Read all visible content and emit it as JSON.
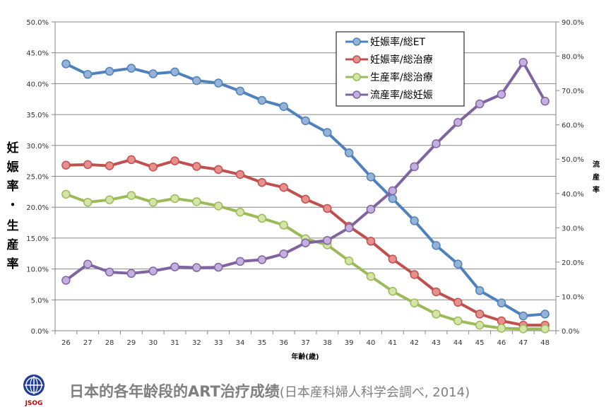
{
  "chart_data": {
    "type": "line",
    "x": [
      26,
      27,
      28,
      29,
      30,
      31,
      32,
      33,
      34,
      35,
      36,
      37,
      38,
      39,
      40,
      41,
      42,
      43,
      44,
      45,
      46,
      47,
      48
    ],
    "xlabel": "年齢(歳)",
    "ylabel_left_chars": [
      "妊",
      "娠",
      "率",
      "・",
      "生",
      "産",
      "率"
    ],
    "ylabel_right_chars": [
      "流",
      "産",
      "率"
    ],
    "ylim_left": [
      0,
      50
    ],
    "ylim_right": [
      0,
      90
    ],
    "yticks_left": [
      "0.0%",
      "5.0%",
      "10.0%",
      "15.0%",
      "20.0%",
      "25.0%",
      "30.0%",
      "35.0%",
      "40.0%",
      "45.0%",
      "50.0%"
    ],
    "yticks_right": [
      "0.0%",
      "10.0%",
      "20.0%",
      "30.0%",
      "40.0%",
      "50.0%",
      "60.0%",
      "70.0%",
      "80.0%",
      "90.0%"
    ],
    "series": [
      {
        "name": "妊娠率/総ET",
        "axis": "left",
        "color": "#4f81bd",
        "marker": "#95b3d7",
        "values": [
          43.2,
          41.5,
          42.0,
          42.5,
          41.6,
          41.9,
          40.5,
          40.1,
          38.8,
          37.3,
          36.3,
          34.0,
          32.1,
          28.8,
          24.9,
          21.4,
          17.8,
          13.8,
          10.8,
          6.5,
          4.5,
          2.4,
          2.7
        ]
      },
      {
        "name": "妊娠率/総治療",
        "axis": "left",
        "color": "#c0504d",
        "marker": "#e6908e",
        "values": [
          26.8,
          26.9,
          26.7,
          27.7,
          26.5,
          27.5,
          26.6,
          26.1,
          25.3,
          24.0,
          23.2,
          21.3,
          19.8,
          16.9,
          14.5,
          11.6,
          9.1,
          6.3,
          4.6,
          2.7,
          1.6,
          0.9,
          0.9
        ]
      },
      {
        "name": "生産率/総治療",
        "axis": "left",
        "color": "#9bbb59",
        "marker": "#d7e4a8",
        "values": [
          22.1,
          20.8,
          21.2,
          21.9,
          20.8,
          21.4,
          20.9,
          20.2,
          19.2,
          18.2,
          17.1,
          14.9,
          13.9,
          11.3,
          8.8,
          6.4,
          4.5,
          2.7,
          1.6,
          0.9,
          0.4,
          0.3,
          0.3
        ]
      },
      {
        "name": "流産率/総妊娠",
        "axis": "right",
        "color": "#8064a2",
        "marker": "#c3b0de",
        "values": [
          14.7,
          19.4,
          17.1,
          16.7,
          17.4,
          18.6,
          18.4,
          18.5,
          20.2,
          20.7,
          22.4,
          25.6,
          26.3,
          30.0,
          35.4,
          40.8,
          47.8,
          54.5,
          60.7,
          66.1,
          68.9,
          78.2,
          66.9
        ]
      }
    ]
  },
  "caption": {
    "main": "日本的各年龄段的ART治疗成绩",
    "sub": "(日本産科婦人科学会調べ, 2014)"
  },
  "logo": {
    "text": "JSOG"
  }
}
